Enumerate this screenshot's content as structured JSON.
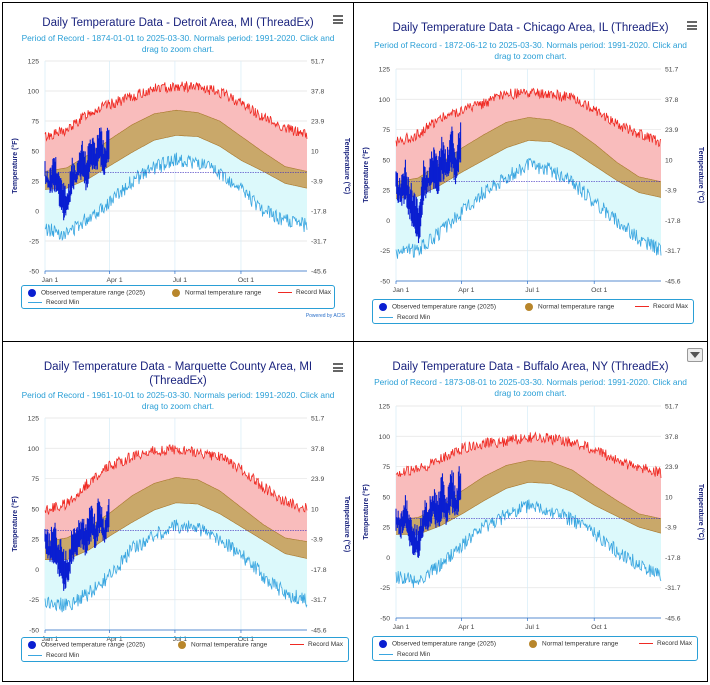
{
  "legend": {
    "observed": "Observed temperature range (2025)",
    "normal": "Normal temperature range",
    "record_max": "Record Max",
    "record_min": "Record Min"
  },
  "colors": {
    "observed": "#0a1fd1",
    "normal_fill": "#c9a86a",
    "normal_marker": "#b8862b",
    "record_max": "#ef2a23",
    "record_max_fill": "#f9bcbc",
    "record_min": "#3aa6e0",
    "record_min_fill": "#dcf9fb",
    "frame": "#2a9fd6",
    "title": "#1a237e"
  },
  "chart_data": [
    {
      "type": "area",
      "title": "Daily Temperature Data - Detroit Area, MI (ThreadEx)",
      "subtitle": "Period of Record - 1874-01-01 to 2025-03-30. Normals period: 1991-2020. Click and drag to zoom chart.",
      "ylabel": "Temperature (°F)",
      "y2label": "Temperature (°C)",
      "ylim": [
        -50,
        125
      ],
      "yticks": [
        "125",
        "100",
        "75",
        "50",
        "25",
        "0",
        "-25",
        "-50"
      ],
      "y2ticks": [
        "51.7",
        "37.8",
        "23.9",
        "10",
        "-3.9",
        "-17.8",
        "-31.7",
        "-45.6"
      ],
      "xticks": [
        "Jan 1",
        "Apr 1",
        "Jul 1",
        "Oct 1"
      ],
      "grid": true,
      "legend_position": "bottom",
      "credit": "Powered by ACIS",
      "normal_max": [
        33,
        36,
        47,
        60,
        72,
        81,
        84,
        82,
        75,
        62,
        49,
        37,
        33
      ],
      "normal_min": [
        18,
        19,
        27,
        38,
        49,
        59,
        63,
        62,
        54,
        42,
        33,
        23,
        19
      ],
      "record_max": [
        62,
        67,
        82,
        89,
        95,
        102,
        104,
        103,
        99,
        90,
        78,
        69,
        64
      ],
      "record_min": [
        -15,
        -19,
        -5,
        8,
        25,
        36,
        43,
        40,
        31,
        18,
        0,
        -8,
        -12
      ],
      "freeze_line": 32,
      "observed_high": [
        36,
        28,
        45,
        30,
        22,
        12,
        40,
        36,
        55,
        42,
        62,
        50,
        70,
        48,
        72
      ],
      "observed_low": [
        26,
        16,
        22,
        10,
        -4,
        -2,
        20,
        24,
        32,
        20,
        36,
        33,
        44,
        30,
        48
      ]
    },
    {
      "type": "area",
      "title": "Daily Temperature Data - Chicago Area, IL (ThreadEx)",
      "subtitle": "Period of Record - 1872-06-12 to 2025-03-30. Normals period: 1991-2020. Click and drag to zoom chart.",
      "ylabel": "Temperature (°F)",
      "y2label": "Temperature (°C)",
      "ylim": [
        -50,
        125
      ],
      "yticks": [
        "125",
        "100",
        "75",
        "50",
        "25",
        "0",
        "-25",
        "-50"
      ],
      "y2ticks": [
        "51.7",
        "37.8",
        "23.9",
        "10",
        "-3.9",
        "-17.8",
        "-31.7",
        "-45.6"
      ],
      "xticks": [
        "Jan 1",
        "Apr 1",
        "Jul 1",
        "Oct 1"
      ],
      "grid": true,
      "legend_position": "bottom",
      "normal_max": [
        32,
        35,
        47,
        60,
        71,
        81,
        85,
        83,
        76,
        63,
        48,
        36,
        32
      ],
      "normal_min": [
        18,
        20,
        29,
        40,
        50,
        60,
        66,
        65,
        57,
        45,
        33,
        23,
        19
      ],
      "record_max": [
        65,
        71,
        85,
        91,
        97,
        104,
        105,
        104,
        101,
        92,
        80,
        71,
        65
      ],
      "record_min": [
        -26,
        -24,
        -10,
        7,
        24,
        36,
        46,
        42,
        31,
        15,
        0,
        -15,
        -25
      ],
      "freeze_line": 32,
      "observed_high": [
        36,
        30,
        44,
        26,
        20,
        10,
        45,
        38,
        56,
        46,
        64,
        50,
        74,
        52,
        78
      ],
      "observed_low": [
        24,
        14,
        20,
        4,
        -10,
        -16,
        18,
        26,
        30,
        22,
        38,
        34,
        46,
        32,
        50
      ]
    },
    {
      "type": "area",
      "title": "Daily Temperature Data - Marquette County Area, MI (ThreadEx)",
      "subtitle": "Period of Record - 1961-10-01 to 2025-03-30. Normals period: 1991-2020. Click and drag to zoom chart.",
      "ylabel": "Temperature (°F)",
      "y2label": "Temperature (°C)",
      "ylim": [
        -50,
        125
      ],
      "yticks": [
        "125",
        "100",
        "75",
        "50",
        "25",
        "0",
        "-25",
        "-50"
      ],
      "y2ticks": [
        "51.7",
        "37.8",
        "23.9",
        "10",
        "-3.9",
        "-17.8",
        "-31.7",
        "-45.6"
      ],
      "xticks": [
        "Jan 1",
        "Apr 1",
        "Jul 1",
        "Oct 1"
      ],
      "grid": true,
      "legend_position": "bottom",
      "normal_max": [
        23,
        26,
        35,
        47,
        61,
        71,
        76,
        74,
        65,
        51,
        37,
        26,
        23
      ],
      "normal_min": [
        8,
        8,
        16,
        28,
        39,
        49,
        55,
        54,
        46,
        35,
        24,
        13,
        9
      ],
      "record_max": [
        49,
        54,
        72,
        86,
        93,
        98,
        99,
        97,
        93,
        83,
        68,
        56,
        50
      ],
      "record_min": [
        -27,
        -30,
        -20,
        -5,
        17,
        28,
        36,
        34,
        25,
        12,
        -5,
        -20,
        -25
      ],
      "freeze_line": 32,
      "observed_high": [
        30,
        24,
        36,
        22,
        14,
        8,
        30,
        28,
        44,
        34,
        52,
        40,
        58,
        36,
        60
      ],
      "observed_low": [
        18,
        8,
        10,
        -2,
        -14,
        -10,
        8,
        14,
        22,
        12,
        28,
        22,
        34,
        20,
        36
      ]
    },
    {
      "type": "area",
      "title": "Daily Temperature Data - Buffalo Area, NY (ThreadEx)",
      "subtitle": "Period of Record - 1873-08-01 to 2025-03-30. Normals period: 1991-2020. Click and drag to zoom chart.",
      "ylabel": "Temperature (°F)",
      "y2label": "Temperature (°C)",
      "ylim": [
        -50,
        125
      ],
      "yticks": [
        "125",
        "100",
        "75",
        "50",
        "25",
        "0",
        "-25",
        "-50"
      ],
      "y2ticks": [
        "51.7",
        "37.8",
        "23.9",
        "10",
        "-3.9",
        "-17.8",
        "-31.7",
        "-45.6"
      ],
      "xticks": [
        "Jan 1",
        "Apr 1",
        "Jul 1",
        "Oct 1"
      ],
      "grid": true,
      "legend_position": "bottom",
      "normal_max": [
        31,
        33,
        42,
        55,
        67,
        76,
        80,
        79,
        72,
        59,
        47,
        36,
        32
      ],
      "normal_min": [
        19,
        19,
        26,
        36,
        47,
        57,
        62,
        61,
        54,
        43,
        34,
        25,
        20
      ],
      "record_max": [
        70,
        72,
        81,
        90,
        94,
        96,
        99,
        98,
        95,
        89,
        80,
        74,
        70
      ],
      "record_min": [
        -16,
        -20,
        -7,
        10,
        25,
        35,
        43,
        38,
        31,
        20,
        5,
        -6,
        -15
      ],
      "freeze_line": 32,
      "observed_high": [
        38,
        32,
        46,
        30,
        24,
        18,
        42,
        36,
        56,
        44,
        64,
        46,
        72,
        52,
        76
      ],
      "observed_low": [
        26,
        20,
        24,
        12,
        4,
        2,
        22,
        24,
        34,
        24,
        38,
        30,
        44,
        34,
        48
      ]
    }
  ]
}
